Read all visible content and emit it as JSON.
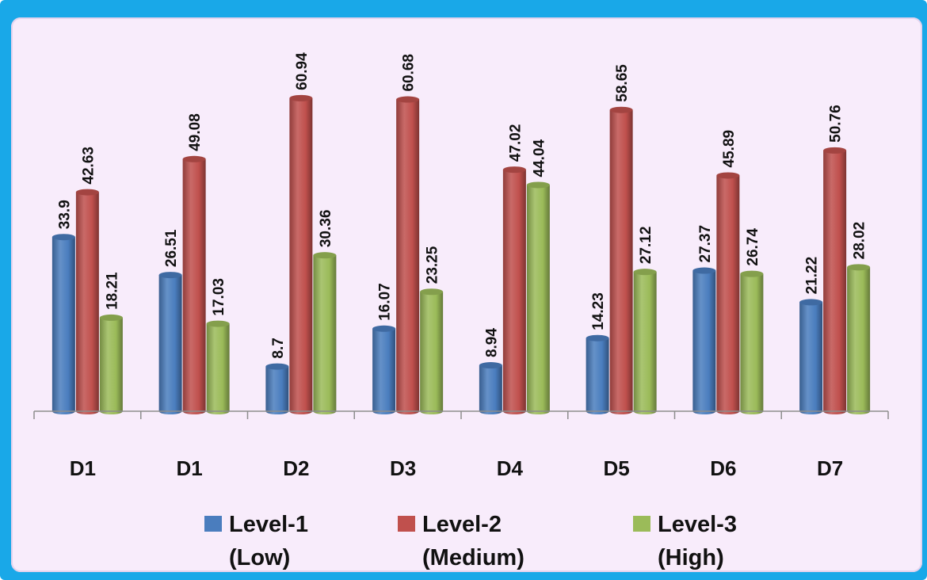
{
  "chart_data": {
    "type": "bar",
    "categories": [
      "D1",
      "D1",
      "D2",
      "D3",
      "D4",
      "D5",
      "D6",
      "D7"
    ],
    "series": [
      {
        "name": "Level-1 (Low)",
        "legend_line1": "Level-1",
        "legend_line2": "(Low)",
        "color": "#4a7dbe",
        "values": [
          33.9,
          26.51,
          8.7,
          16.07,
          8.94,
          14.23,
          27.37,
          21.22
        ]
      },
      {
        "name": "Level-2 (Medium)",
        "legend_line1": "Level-2",
        "legend_line2": "(Medium)",
        "color": "#c0504d",
        "values": [
          42.63,
          49.08,
          60.94,
          60.68,
          47.02,
          58.65,
          45.89,
          50.76
        ]
      },
      {
        "name": "Level-3 (High)",
        "legend_line1": "Level-3",
        "legend_line2": "(High)",
        "color": "#9bbb59",
        "values": [
          18.21,
          17.03,
          30.36,
          23.25,
          44.04,
          27.12,
          26.74,
          28.02
        ]
      }
    ],
    "value_labels": [
      [
        "33.9",
        "26.51",
        "8.7",
        "16.07",
        "8.94",
        "14.23",
        "27.37",
        "21.22"
      ],
      [
        "42.63",
        "49.08",
        "60.94",
        "60.68",
        "47.02",
        "58.65",
        "45.89",
        "50.76"
      ],
      [
        "18.21",
        "17.03",
        "30.36",
        "23.25",
        "44.04",
        "27.12",
        "26.74",
        "28.02"
      ]
    ],
    "title": "",
    "xlabel": "",
    "ylabel": "",
    "ylim": [
      0,
      62
    ],
    "grid": false,
    "legend_position": "bottom",
    "style": "3d-cylinder"
  }
}
